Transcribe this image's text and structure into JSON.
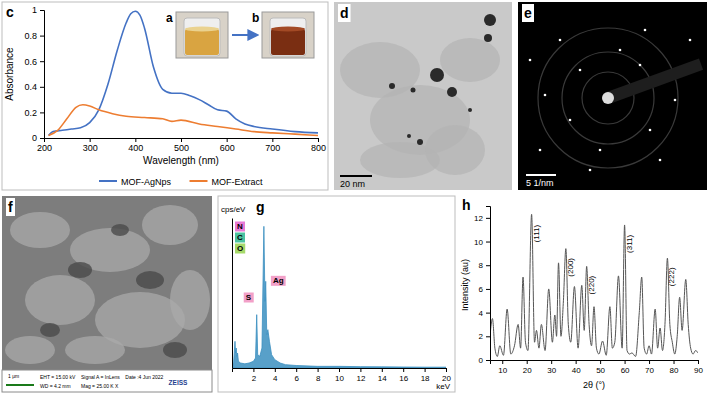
{
  "chart_data": [
    {
      "panel_label": "c",
      "type": "line",
      "x_label": "Wavelength (nm)",
      "y_label": "Absorbance",
      "xlim": [
        200,
        800
      ],
      "xticks": [
        200,
        300,
        400,
        500,
        600,
        700,
        800
      ],
      "ylim": [
        0,
        1
      ],
      "yticks": [
        0,
        0.2,
        0.4,
        0.6,
        0.8,
        1
      ],
      "legend": "bottom",
      "series": [
        {
          "name": "MOF-AgNps",
          "color": "#4472c4",
          "x": [
            210,
            220,
            240,
            260,
            280,
            300,
            320,
            340,
            360,
            380,
            390,
            400,
            410,
            420,
            440,
            460,
            480,
            500,
            520,
            540,
            560,
            580,
            600,
            620,
            640,
            660,
            700,
            750,
            800
          ],
          "values": [
            0.02,
            0.05,
            0.06,
            0.07,
            0.08,
            0.12,
            0.22,
            0.42,
            0.68,
            0.9,
            0.97,
            0.99,
            0.96,
            0.86,
            0.55,
            0.38,
            0.35,
            0.35,
            0.33,
            0.3,
            0.26,
            0.22,
            0.21,
            0.15,
            0.11,
            0.09,
            0.07,
            0.05,
            0.04
          ]
        },
        {
          "name": "MOF-Extract",
          "color": "#ed7d31",
          "x": [
            210,
            230,
            250,
            270,
            285,
            300,
            320,
            350,
            380,
            420,
            460,
            480,
            500,
            540,
            580,
            620,
            660,
            700,
            750,
            800
          ],
          "values": [
            0.02,
            0.06,
            0.15,
            0.24,
            0.26,
            0.25,
            0.22,
            0.19,
            0.17,
            0.16,
            0.15,
            0.13,
            0.14,
            0.11,
            0.09,
            0.07,
            0.05,
            0.04,
            0.03,
            0.02
          ]
        }
      ]
    },
    {
      "panel_label": "g",
      "type": "area",
      "y_label": "cps/eV",
      "x_label": "keV",
      "color": "#3b8fc0",
      "tick_labels": "x",
      "xlim": [
        0,
        20
      ],
      "xticks": [
        2,
        4,
        6,
        8,
        10,
        12,
        14,
        16,
        18,
        20
      ],
      "ylim": [
        0,
        9
      ],
      "x": [
        0,
        0.15,
        0.28,
        0.33,
        0.39,
        0.45,
        0.52,
        0.6,
        0.8,
        1.2,
        1.6,
        2.0,
        2.2,
        2.31,
        2.4,
        2.6,
        2.8,
        2.98,
        3.08,
        3.15,
        3.25,
        3.35,
        3.5,
        3.7,
        4.0,
        4.5,
        5,
        6,
        8,
        10,
        12,
        14,
        16,
        18,
        20
      ],
      "values": [
        0,
        0.3,
        1.6,
        0.9,
        1.2,
        0.7,
        0.9,
        0.4,
        0.3,
        0.25,
        0.3,
        0.4,
        0.6,
        3.2,
        0.8,
        0.7,
        1.2,
        8.5,
        4.0,
        5.2,
        2.0,
        2.3,
        1.6,
        0.8,
        0.5,
        0.3,
        0.2,
        0.15,
        0.1,
        0.1,
        0.08,
        0.07,
        0.06,
        0.05,
        0.05
      ],
      "annotations": [
        {
          "text": "N",
          "x": 0.39,
          "color": "#e87ad6"
        },
        {
          "text": "C",
          "x": 0.28,
          "color": "#4cc3a0"
        },
        {
          "text": "O",
          "x": 0.52,
          "color": "#a6d96a"
        },
        {
          "text": "S",
          "x": 2.31,
          "color": "#f2a0c8"
        },
        {
          "text": "Ag",
          "x": 2.98,
          "color": "#f2a0c8"
        }
      ]
    },
    {
      "panel_label": "h",
      "type": "line",
      "x_label": "2θ (°)",
      "y_label": "Intensity (au)",
      "color": "#555555",
      "xlim": [
        5,
        90
      ],
      "xticks": [
        10,
        20,
        30,
        40,
        50,
        60,
        70,
        80,
        90
      ],
      "ylim": [
        0,
        13
      ],
      "yticks": [
        0,
        2,
        4,
        6,
        8,
        10,
        12
      ],
      "x": [
        5,
        6,
        7,
        8,
        9,
        10.5,
        12,
        13.5,
        15,
        16.5,
        17.5,
        18.5,
        19.5,
        20.5,
        22,
        23.2,
        24,
        25,
        26,
        27.5,
        29,
        30.5,
        31.5,
        32.2,
        33,
        34,
        35,
        36,
        37,
        38,
        39.5,
        41,
        42.5,
        43.5,
        44.5,
        45.5,
        46.5,
        47.5,
        48.5,
        49.5,
        51,
        52.5,
        54,
        55,
        56,
        57.5,
        59,
        60,
        61,
        62,
        63,
        64.5,
        66,
        67,
        68,
        69,
        70,
        71,
        72.5,
        73.5,
        74.5,
        75.5,
        76.5,
        77.5,
        78.5,
        79.5,
        80.5,
        81.5,
        82.5,
        83.5,
        85,
        86,
        87,
        88,
        89,
        90
      ],
      "values": [
        2.0,
        3.5,
        1.0,
        0.3,
        1.2,
        0.4,
        4.3,
        0.5,
        1.2,
        3.0,
        1.0,
        7.0,
        1.5,
        0.8,
        12.3,
        1.5,
        2.5,
        1.0,
        3.0,
        0.8,
        6.0,
        1.5,
        3.8,
        2.0,
        8.2,
        2.0,
        5.0,
        9.4,
        3.0,
        1.5,
        6.2,
        1.0,
        6.3,
        2.5,
        7.9,
        3.0,
        1.2,
        4.5,
        1.0,
        0.5,
        1.6,
        0.4,
        4.5,
        1.0,
        1.5,
        7.1,
        1.0,
        11.4,
        0.8,
        0.5,
        0.6,
        0.3,
        4.0,
        7.0,
        1.0,
        0.5,
        1.2,
        0.5,
        4.3,
        1.0,
        2.7,
        0.8,
        3.0,
        8.6,
        3.0,
        1.5,
        0.5,
        2.0,
        5.3,
        2.5,
        6.8,
        3.0,
        1.0,
        0.5,
        0.8,
        0.6
      ],
      "annotations": [
        {
          "text": "(111)",
          "x": 22,
          "y": 12.3
        },
        {
          "text": "(200)",
          "x": 36,
          "y": 9.4
        },
        {
          "text": "(220)",
          "x": 44.5,
          "y": 7.9
        },
        {
          "text": "(311)",
          "x": 60,
          "y": 11.4
        },
        {
          "text": "(222)",
          "x": 77.5,
          "y": 8.6
        }
      ]
    }
  ],
  "images": [
    {
      "panel_label": "a"
    },
    {
      "panel_label": "b"
    },
    {
      "panel_label": "d",
      "scale_bar": "20 nm"
    },
    {
      "panel_label": "e",
      "scale_bar": "5 1/nm"
    },
    {
      "panel_label": "f",
      "scale_bar": "1 μm",
      "info": [
        "EHT = 15.00 kV",
        "WD = 4.2 mm",
        "Signal A = InLens",
        "Mag = 25.00 K X",
        "Date :4 Jun 2022"
      ],
      "brand": "ZEISS"
    }
  ]
}
